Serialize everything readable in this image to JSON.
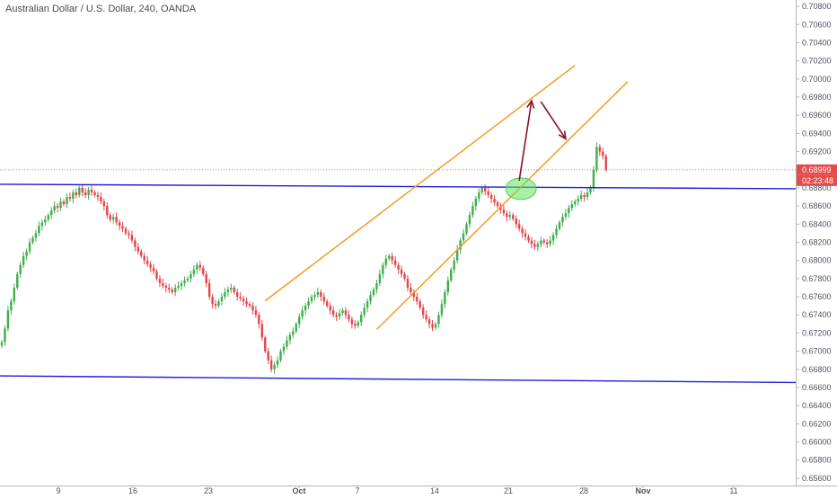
{
  "chart_data": {
    "type": "candlestick",
    "title": "Australian Dollar / U.S. Dollar, 240, OANDA",
    "current_price_label": "0.68999",
    "countdown_label": "02:23:48",
    "y_tick_labels": [
      "0.70800",
      "0.70600",
      "0.70400",
      "0.70200",
      "0.70000",
      "0.69800",
      "0.69600",
      "0.69400",
      "0.69200",
      "0.68800",
      "0.68600",
      "0.68400",
      "0.68200",
      "0.68000",
      "0.67800",
      "0.67600",
      "0.67400",
      "0.67200",
      "0.67000",
      "0.66800",
      "0.66600",
      "0.66400",
      "0.66200",
      "0.66000",
      "0.65800",
      "0.65600"
    ],
    "x_tick_labels": [
      "9",
      "16",
      "23",
      "Oct",
      "7",
      "14",
      "21",
      "28",
      "Nov",
      "11"
    ],
    "ylim": [
      0.6552,
      0.7087
    ],
    "grid": false,
    "current_price": 0.68999,
    "closes": [
      0.671,
      0.6725,
      0.6745,
      0.6755,
      0.677,
      0.6785,
      0.6795,
      0.6805,
      0.681,
      0.682,
      0.6825,
      0.683,
      0.6838,
      0.6842,
      0.6845,
      0.685,
      0.6855,
      0.686,
      0.6858,
      0.6865,
      0.6862,
      0.687,
      0.6868,
      0.6875,
      0.6872,
      0.688,
      0.6875,
      0.6872,
      0.6878,
      0.6875,
      0.6872,
      0.687,
      0.6865,
      0.686,
      0.685,
      0.6845,
      0.6848,
      0.6842,
      0.6838,
      0.6835,
      0.683,
      0.6828,
      0.6822,
      0.6815,
      0.681,
      0.6805,
      0.68,
      0.6796,
      0.6792,
      0.6788,
      0.678,
      0.6775,
      0.6772,
      0.677,
      0.6768,
      0.6765,
      0.677,
      0.6772,
      0.6775,
      0.6778,
      0.678,
      0.6785,
      0.679,
      0.6795,
      0.6792,
      0.6785,
      0.6775,
      0.676,
      0.6752,
      0.675,
      0.6755,
      0.676,
      0.6765,
      0.6768,
      0.677,
      0.6765,
      0.676,
      0.6758,
      0.6755,
      0.6752,
      0.675,
      0.6745,
      0.674,
      0.673,
      0.6715,
      0.67,
      0.669,
      0.668,
      0.6685,
      0.669,
      0.67,
      0.6705,
      0.6712,
      0.6718,
      0.6722,
      0.673,
      0.6738,
      0.6745,
      0.675,
      0.6755,
      0.676,
      0.6762,
      0.6765,
      0.676,
      0.6755,
      0.675,
      0.6745,
      0.674,
      0.6738,
      0.6742,
      0.6745,
      0.674,
      0.6735,
      0.673,
      0.6728,
      0.6732,
      0.674,
      0.6748,
      0.6755,
      0.6762,
      0.6768,
      0.6775,
      0.6785,
      0.6795,
      0.6802,
      0.6805,
      0.68,
      0.6795,
      0.679,
      0.6785,
      0.678,
      0.677,
      0.6765,
      0.676,
      0.6755,
      0.6748,
      0.674,
      0.6735,
      0.673,
      0.6726,
      0.673,
      0.674,
      0.6752,
      0.6765,
      0.6778,
      0.679,
      0.68,
      0.6812,
      0.6822,
      0.683,
      0.684,
      0.685,
      0.686,
      0.6868,
      0.6875,
      0.688,
      0.6876,
      0.6872,
      0.6868,
      0.6864,
      0.686,
      0.6856,
      0.6852,
      0.6848,
      0.685,
      0.6846,
      0.684,
      0.6835,
      0.683,
      0.6826,
      0.6822,
      0.6818,
      0.6815,
      0.6818,
      0.6822,
      0.682,
      0.6818,
      0.6822,
      0.6828,
      0.6835,
      0.6842,
      0.6848,
      0.6852,
      0.6858,
      0.6862,
      0.6865,
      0.6868,
      0.6872,
      0.687,
      0.6875,
      0.688,
      0.69,
      0.6925,
      0.692,
      0.6915,
      0.69
    ],
    "horizontal_lines": [
      {
        "color": "#1e1edc",
        "points": [
          [
            0,
            0.6884
          ],
          [
            206,
            0.6879
          ]
        ]
      },
      {
        "color": "#1e1edc",
        "points": [
          [
            0,
            0.66728
          ],
          [
            206,
            0.66655
          ]
        ]
      }
    ],
    "trend_lines": [
      {
        "color": "#f59b22",
        "points": [
          [
            85,
            0.67555
          ],
          [
            185,
            0.7015
          ]
        ]
      },
      {
        "color": "#f59b22",
        "points": [
          [
            121,
            0.6724
          ],
          [
            202,
            0.6997
          ]
        ]
      }
    ],
    "arrows": [
      {
        "color": "#8b0e28",
        "points": [
          [
            167,
            0.6888
          ],
          [
            171,
            0.6976
          ]
        ]
      },
      {
        "color": "#8b0e28",
        "points": [
          [
            174,
            0.6975
          ],
          [
            182,
            0.6934
          ]
        ]
      }
    ],
    "highlight_ellipse": {
      "color": "#5ee35e",
      "center": [
        167,
        0.6879
      ]
    },
    "price_marker_colors": {
      "price": "#e54b4b",
      "countdown": "#e54b4b",
      "current_line": "#e54b4b"
    }
  }
}
